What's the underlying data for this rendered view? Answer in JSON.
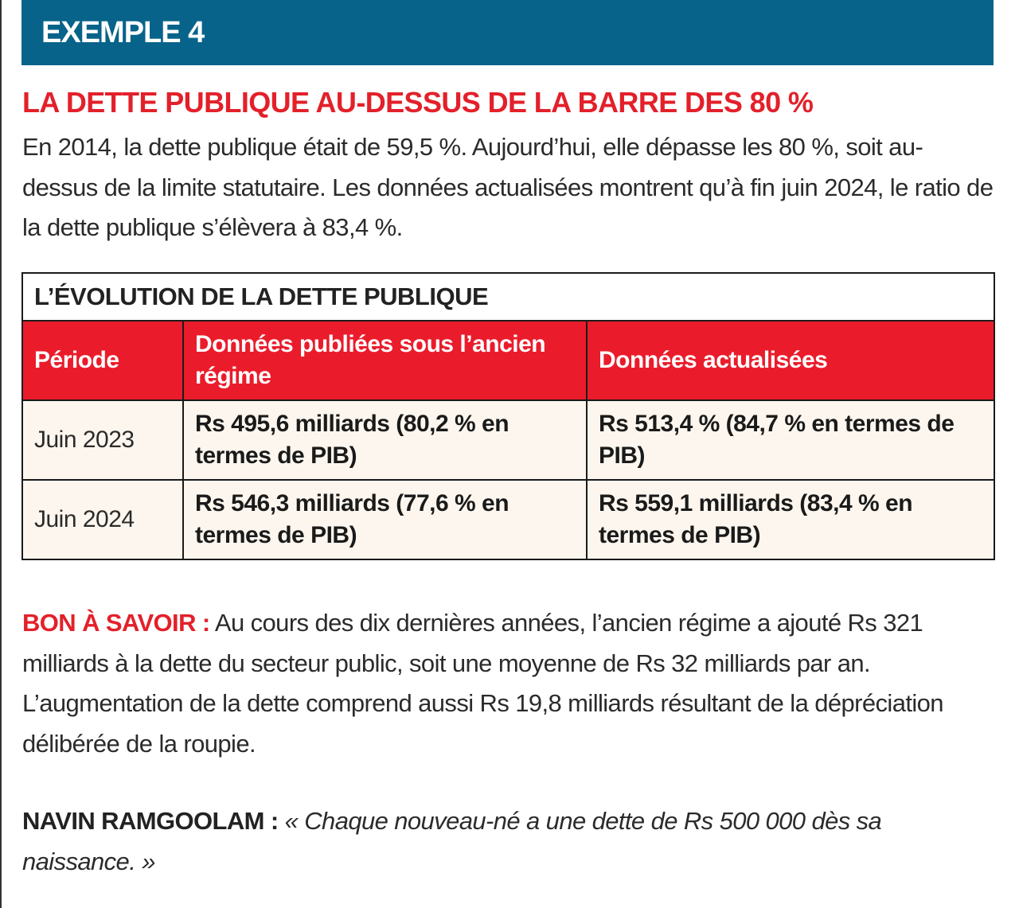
{
  "header": {
    "label": "EXEMPLE 4"
  },
  "title": "LA DETTE PUBLIQUE AU-DESSUS DE LA BARRE DES 80 %",
  "intro": "En 2014, la dette publique était de 59,5 %. Aujourd’hui, elle dépasse les 80 %, soit au-dessus de la limite statutaire. Les données actualisées montrent qu’à fin juin 2024, le ratio de la dette publique s’élèvera à 83,4 %.",
  "table": {
    "title": "L’ÉVOLUTION DE LA DETTE PUBLIQUE",
    "columns": [
      "Période",
      "Données publiées sous l’ancien régime",
      "Données actualisées"
    ],
    "rows": [
      [
        "Juin 2023",
        "Rs 495,6 milliards (80,2 % en termes de PIB)",
        "Rs 513,4 % (84,7 % en termes de PIB)"
      ],
      [
        "Juin 2024",
        "Rs 546,3 milliards (77,6 % en termes de PIB)",
        "Rs 559,1 milliards (83,4 % en termes de PIB)"
      ]
    ]
  },
  "note": {
    "label": "BON À SAVOIR :",
    "text": "Au cours des dix dernières années, l’ancien régime a ajouté Rs 321 milliards à la dette du secteur public, soit une moyenne de Rs 32 milliards par an. L’augmentation de la dette comprend aussi Rs 19,8 milliards résultant de la dépréciation délibérée de la roupie."
  },
  "quote": {
    "speaker": "NAVIN RAMGOOLAM :",
    "text": "« Chaque nouveau-né a une dette de Rs 500 000 dès sa naissance. »"
  }
}
